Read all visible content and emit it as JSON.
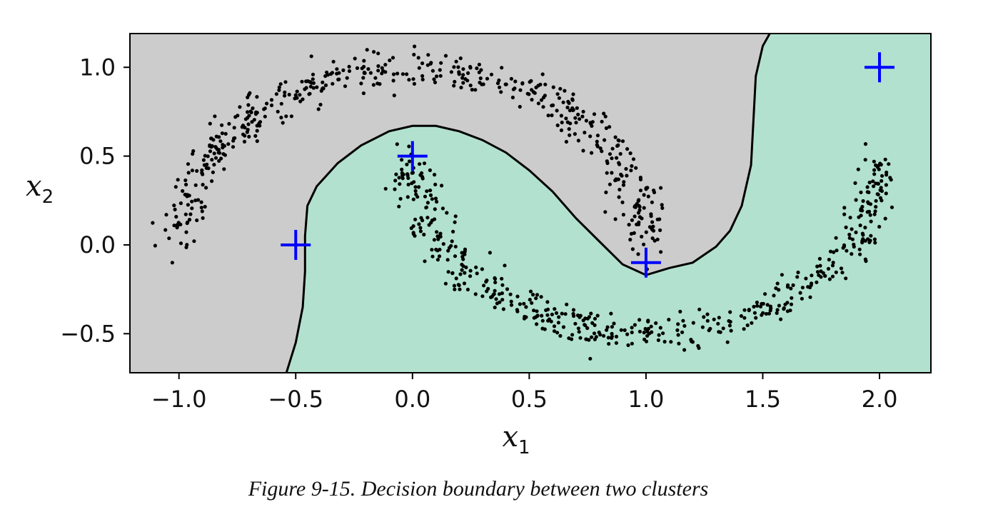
{
  "caption": "Figure 9-15. Decision boundary between two clusters",
  "chart_data": {
    "type": "scatter",
    "title": "",
    "xlabel": "x1",
    "ylabel": "x2",
    "xlim": [
      -1.21,
      2.22
    ],
    "ylim": [
      -0.72,
      1.19
    ],
    "xticks": [
      -1.0,
      -0.5,
      0.0,
      0.5,
      1.0,
      1.5,
      2.0
    ],
    "xtick_labels": [
      "−1.0",
      "−0.5",
      "0.0",
      "0.5",
      "1.0",
      "1.5",
      "2.0"
    ],
    "yticks": [
      -0.5,
      0.0,
      0.5,
      1.0
    ],
    "ytick_labels": [
      "−0.5",
      "0.0",
      "0.5",
      "1.0"
    ],
    "grid": false,
    "colors": {
      "region_cluster_0": "#cccccc",
      "region_cluster_1": "#b2e2cf",
      "boundary": "#000000",
      "points": "#000000",
      "centroids": "#0000ff"
    },
    "decision_boundary": [
      [
        -0.54,
        -0.72
      ],
      [
        -0.5,
        -0.55
      ],
      [
        -0.47,
        -0.35
      ],
      [
        -0.46,
        -0.15
      ],
      [
        -0.46,
        0.05
      ],
      [
        -0.45,
        0.22
      ],
      [
        -0.41,
        0.33
      ],
      [
        -0.32,
        0.46
      ],
      [
        -0.22,
        0.56
      ],
      [
        -0.1,
        0.64
      ],
      [
        0.0,
        0.67
      ],
      [
        0.1,
        0.67
      ],
      [
        0.2,
        0.64
      ],
      [
        0.3,
        0.59
      ],
      [
        0.4,
        0.52
      ],
      [
        0.5,
        0.42
      ],
      [
        0.6,
        0.3
      ],
      [
        0.7,
        0.15
      ],
      [
        0.8,
        0.02
      ],
      [
        0.9,
        -0.11
      ],
      [
        1.0,
        -0.17
      ],
      [
        1.1,
        -0.13
      ],
      [
        1.2,
        -0.1
      ],
      [
        1.3,
        -0.01
      ],
      [
        1.36,
        0.08
      ],
      [
        1.41,
        0.22
      ],
      [
        1.45,
        0.45
      ],
      [
        1.46,
        0.7
      ],
      [
        1.47,
        0.95
      ],
      [
        1.5,
        1.12
      ],
      [
        1.53,
        1.19
      ]
    ],
    "centroids": [
      {
        "x": -0.5,
        "y": 0.0
      },
      {
        "x": 0.0,
        "y": 0.5
      },
      {
        "x": 1.0,
        "y": -0.1
      },
      {
        "x": 2.0,
        "y": 1.0
      }
    ],
    "points": {
      "count": 1000,
      "moon_upper": {
        "center": [
          0.0,
          0.0
        ],
        "radius": 1.0,
        "theta_deg": [
          0,
          180
        ]
      },
      "moon_lower": {
        "center": [
          1.0,
          0.5
        ],
        "radius": 1.0,
        "theta_deg": [
          180,
          360
        ]
      },
      "noise_std": 0.05
    }
  }
}
